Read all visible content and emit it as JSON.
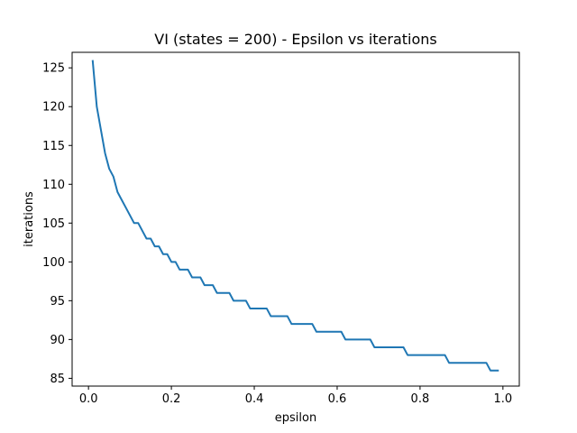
{
  "chart_data": {
    "type": "line",
    "title": "VI (states = 200) - Epsilon vs iterations",
    "xlabel": "epsilon",
    "ylabel": "iterations",
    "xlim": [
      -0.0395,
      1.0395
    ],
    "ylim": [
      84.0,
      127.0
    ],
    "xticks": [
      0.0,
      0.2,
      0.4,
      0.6,
      0.8,
      1.0
    ],
    "xtick_labels": [
      "0.0",
      "0.2",
      "0.4",
      "0.6",
      "0.8",
      "1.0"
    ],
    "yticks": [
      85,
      90,
      95,
      100,
      105,
      110,
      115,
      120,
      125
    ],
    "ytick_labels": [
      "85",
      "90",
      "95",
      "100",
      "105",
      "110",
      "115",
      "120",
      "125"
    ],
    "grid": false,
    "line_color": "#1f77b4",
    "series": [
      {
        "x": [
          0.01,
          0.02,
          0.03,
          0.04,
          0.05,
          0.06,
          0.07,
          0.08,
          0.09,
          0.1,
          0.11,
          0.12,
          0.13,
          0.14,
          0.15,
          0.16,
          0.17,
          0.18,
          0.19,
          0.2,
          0.21,
          0.22,
          0.23,
          0.24,
          0.25,
          0.26,
          0.27,
          0.28,
          0.29,
          0.3,
          0.31,
          0.32,
          0.33,
          0.34,
          0.35,
          0.36,
          0.37,
          0.38,
          0.39,
          0.4,
          0.41,
          0.42,
          0.43,
          0.44,
          0.45,
          0.46,
          0.47,
          0.48,
          0.49,
          0.5,
          0.51,
          0.52,
          0.53,
          0.54,
          0.55,
          0.56,
          0.57,
          0.58,
          0.59,
          0.6,
          0.61,
          0.62,
          0.63,
          0.64,
          0.65,
          0.66,
          0.67,
          0.68,
          0.69,
          0.7,
          0.71,
          0.72,
          0.73,
          0.74,
          0.75,
          0.76,
          0.77,
          0.78,
          0.79,
          0.8,
          0.81,
          0.82,
          0.83,
          0.84,
          0.85,
          0.86,
          0.87,
          0.88,
          0.89,
          0.9,
          0.91,
          0.92,
          0.93,
          0.94,
          0.95,
          0.96,
          0.97,
          0.98,
          0.99
        ],
        "values": [
          126,
          120,
          117,
          114,
          112,
          111,
          109,
          108,
          107,
          106,
          105,
          105,
          104,
          103,
          103,
          102,
          102,
          101,
          101,
          100,
          100,
          99,
          99,
          99,
          98,
          98,
          98,
          97,
          97,
          97,
          96,
          96,
          96,
          96,
          95,
          95,
          95,
          95,
          94,
          94,
          94,
          94,
          94,
          93,
          93,
          93,
          93,
          93,
          92,
          92,
          92,
          92,
          92,
          92,
          91,
          91,
          91,
          91,
          91,
          91,
          91,
          90,
          90,
          90,
          90,
          90,
          90,
          90,
          89,
          89,
          89,
          89,
          89,
          89,
          89,
          89,
          88,
          88,
          88,
          88,
          88,
          88,
          88,
          88,
          88,
          88,
          87,
          87,
          87,
          87,
          87,
          87,
          87,
          87,
          87,
          87,
          86,
          86,
          86
        ]
      }
    ]
  }
}
